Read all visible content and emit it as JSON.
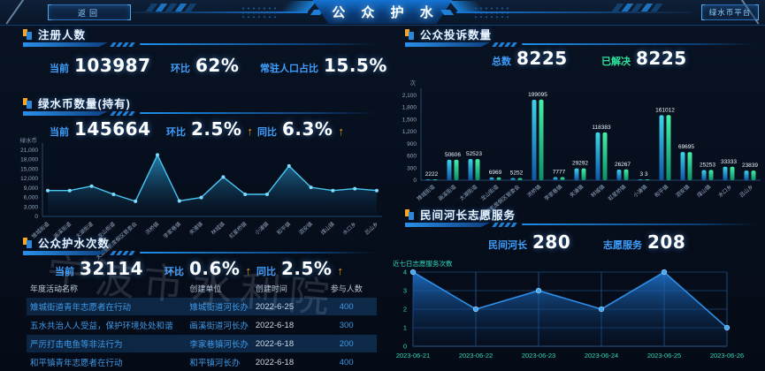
{
  "header": {
    "back_label": "返回",
    "title": "公 众 护 水",
    "platform_label": "绿水币平台"
  },
  "watermark": "宁波市水利院",
  "panels": {
    "registered": {
      "title": "注册人数",
      "stats": [
        {
          "label": "当前",
          "value": "103987"
        },
        {
          "label": "环比",
          "value": "62%"
        },
        {
          "label": "常驻人口占比",
          "value": "15.5%"
        }
      ]
    },
    "coins": {
      "title": "绿水币数量(持有)",
      "stats": [
        {
          "label": "当前",
          "value": "145664"
        },
        {
          "label": "环比",
          "value": "2.5%",
          "arrow": "↑"
        },
        {
          "label": "同比",
          "value": "6.3%",
          "arrow": "↑"
        }
      ]
    },
    "protect": {
      "title": "公众护水次数",
      "stats": [
        {
          "label": "当前",
          "value": "32114"
        },
        {
          "label": "环比",
          "value": "0.6%",
          "arrow": "↑"
        },
        {
          "label": "同比",
          "value": "2.5%",
          "arrow": "↑"
        }
      ]
    },
    "complaints": {
      "title": "公众投诉数量",
      "stats": [
        {
          "label": "总数",
          "value": "8225"
        },
        {
          "label": "已解决",
          "value": "8225"
        }
      ]
    },
    "volunteer": {
      "title": "民间河长志愿服务",
      "stats": [
        {
          "label": "民间河长",
          "value": "280"
        },
        {
          "label": "志愿服务",
          "value": "208"
        }
      ]
    }
  },
  "table": {
    "headers": [
      "年度活动名称",
      "创建单位",
      "创建时间",
      "参与人数"
    ],
    "rows": [
      [
        "雉城街道青年志愿者在行动",
        "雉城街道河长办",
        "2022-6-25",
        "400"
      ],
      [
        "五水共治人人受益，保护环境处处和谐",
        "画溪街道河长办",
        "2022-6-18",
        "300"
      ],
      [
        "严厉打击电鱼等非法行为",
        "李家巷镇河长办",
        "2022-6-18",
        "200"
      ],
      [
        "和平镇青年志愿者在行动",
        "和平镇河长办",
        "2022-6-18",
        "400"
      ]
    ]
  },
  "chart_data": [
    {
      "id": "green_coins_by_town",
      "type": "area",
      "unit": "绿水币",
      "categories": [
        "雉城街道",
        "画溪街道",
        "太湖街道",
        "龙山街道",
        "太湖图影度假区管委会",
        "洪桥镇",
        "李家巷镇",
        "夹浦镇",
        "林城镇",
        "虹星桥镇",
        "小浦镇",
        "和平镇",
        "泗安镇",
        "煤山镇",
        "水口乡",
        "吕山乡"
      ],
      "values": [
        8200,
        8200,
        9600,
        7000,
        4800,
        19500,
        4900,
        6000,
        12500,
        7000,
        7000,
        16000,
        9200,
        8200,
        8800,
        8200
      ],
      "ylim": [
        0,
        21000
      ],
      "ytick_step": 3000
    },
    {
      "id": "complaints_by_town",
      "type": "bar",
      "unit": "次",
      "categories": [
        "雉城街道",
        "画溪街道",
        "太湖街道",
        "龙山街道",
        "太湖图影度假区管委会",
        "洪桥镇",
        "李家巷镇",
        "夹浦镇",
        "林城镇",
        "虹星桥镇",
        "小浦镇",
        "和平镇",
        "泗安镇",
        "煤山镇",
        "水口乡",
        "吕山乡"
      ],
      "series": [
        {
          "name": "series-blue",
          "values": [
            22,
            506,
            525,
            69,
            52,
            1990,
            77,
            292,
            1183,
            262,
            3,
            1610,
            696,
            252,
            333,
            238
          ]
        },
        {
          "name": "series-green",
          "values": [
            22,
            506,
            523,
            69,
            52,
            1995,
            77,
            292,
            1183,
            267,
            3,
            1612,
            695,
            253,
            333,
            239
          ]
        }
      ],
      "bar_labels": [
        "2222",
        "50606",
        "52523",
        "6969",
        "5252",
        "199095",
        "7777",
        "29292",
        "118383",
        "26267",
        "3 3",
        "161012",
        "69695",
        "25253",
        "33333",
        "23839"
      ],
      "ylim": [
        0,
        2100
      ],
      "ytick_step": 300
    },
    {
      "id": "volunteer_last7days",
      "type": "area",
      "title": "近七日志愿服务次数",
      "x": [
        "2023-06-21",
        "2023-06-22",
        "2023-06-23",
        "2023-06-24",
        "2023-06-25",
        "2023-06-26"
      ],
      "values": [
        4,
        2,
        3,
        2,
        4,
        1
      ],
      "ylim": [
        0,
        4
      ],
      "ytick_step": 1,
      "grid": true
    }
  ],
  "colors": {
    "accent": "#1e90ff",
    "label_blue": "#3da0ff",
    "resolved_green": "#2ee59d",
    "arrow_orange": "#f7a41d",
    "area_line_cyan": "#45c8f5",
    "bar_blue_top": "#3fd4e8",
    "bar_green_top": "#46efa8",
    "teal_axis": "#35d4b8"
  }
}
